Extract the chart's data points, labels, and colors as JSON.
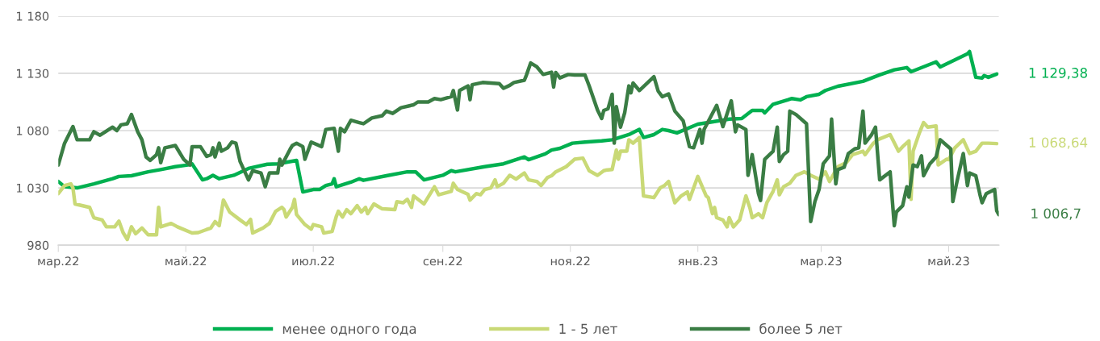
{
  "chart_data": {
    "type": "line",
    "ylim": [
      980,
      1180
    ],
    "yticks": [
      {
        "value": 980,
        "label": "980"
      },
      {
        "value": 1030,
        "label": "1 030"
      },
      {
        "value": 1080,
        "label": "1 080"
      },
      {
        "value": 1130,
        "label": "1 130"
      },
      {
        "value": 1180,
        "label": "1 180"
      }
    ],
    "xlim": [
      "2022-03-01",
      "2023-05-25"
    ],
    "xticks": [
      {
        "value": "2022-03-01",
        "label": "мар.22"
      },
      {
        "value": "2022-05-01",
        "label": "май.22"
      },
      {
        "value": "2022-07-01",
        "label": "июл.22"
      },
      {
        "value": "2022-09-01",
        "label": "сен.22"
      },
      {
        "value": "2022-11-01",
        "label": "ноя.22"
      },
      {
        "value": "2023-01-01",
        "label": "янв.23"
      },
      {
        "value": "2023-03-01",
        "label": "мар.23"
      },
      {
        "value": "2023-05-01",
        "label": "май.23"
      }
    ],
    "grid": "y",
    "legend": "bottom",
    "marker": "none",
    "line_style": "solid",
    "annotations": [
      {
        "text": "1 129,38",
        "x": "2023-05-24",
        "y": 1129.38
      },
      {
        "text": "1 068,64",
        "x": "2023-05-24",
        "y": 1068.64
      },
      {
        "text": "1 006,7",
        "x": "2023-05-25",
        "y": 1006.7
      }
    ],
    "series": [
      {
        "name": "менее одного года",
        "color": "#00b050",
        "x": [
          "2022-03-01",
          "2022-03-04",
          "2022-03-10",
          "2022-03-18",
          "2022-03-27",
          "2022-03-30",
          "2022-04-05",
          "2022-04-13",
          "2022-04-19",
          "2022-04-26",
          "2022-05-02",
          "2022-05-04",
          "2022-05-09",
          "2022-05-11",
          "2022-05-14",
          "2022-05-17",
          "2022-05-24",
          "2022-05-31",
          "2022-06-09",
          "2022-06-14",
          "2022-06-23",
          "2022-06-26",
          "2022-07-01",
          "2022-07-04",
          "2022-07-07",
          "2022-07-10",
          "2022-07-11",
          "2022-07-12",
          "2022-07-19",
          "2022-07-23",
          "2022-07-25",
          "2022-08-05",
          "2022-08-15",
          "2022-08-19",
          "2022-08-23",
          "2022-09-01",
          "2022-09-05",
          "2022-09-07",
          "2022-09-21",
          "2022-09-30",
          "2022-10-10",
          "2022-10-12",
          "2022-10-20",
          "2022-10-23",
          "2022-10-27",
          "2022-11-02",
          "2022-11-08",
          "2022-11-16",
          "2022-11-21",
          "2022-11-29",
          "2022-12-04",
          "2022-12-06",
          "2022-12-11",
          "2022-12-15",
          "2022-12-18",
          "2022-12-22",
          "2023-01-01",
          "2023-01-06",
          "2023-01-16",
          "2023-01-22",
          "2023-01-27",
          "2023-02-01",
          "2023-02-02",
          "2023-02-06",
          "2023-02-13",
          "2023-02-15",
          "2023-02-19",
          "2023-02-22",
          "2023-02-28",
          "2023-03-03",
          "2023-03-09",
          "2023-03-21",
          "2023-03-29",
          "2023-04-05",
          "2023-04-11",
          "2023-04-13",
          "2023-04-25",
          "2023-04-27",
          "2023-05-10",
          "2023-05-11",
          "2023-05-14",
          "2023-05-17",
          "2023-05-18",
          "2023-05-20",
          "2023-05-24"
        ],
        "values": [
          1035.6,
          1031,
          1030,
          1033.5,
          1038,
          1040,
          1040.6,
          1044,
          1046,
          1048.5,
          1050,
          1051,
          1037,
          1038,
          1041,
          1038,
          1041,
          1047,
          1050.6,
          1051,
          1054,
          1026.5,
          1028.6,
          1028.6,
          1032,
          1033.5,
          1038,
          1031,
          1035,
          1038,
          1036.6,
          1040.6,
          1044,
          1044,
          1037,
          1041,
          1045,
          1044,
          1048.5,
          1051,
          1057,
          1054.6,
          1059.7,
          1063,
          1064.5,
          1069,
          1070,
          1071,
          1072,
          1076.5,
          1081,
          1074,
          1076.5,
          1081,
          1080,
          1078,
          1085.6,
          1087,
          1090,
          1090.6,
          1097.6,
          1097.6,
          1095.5,
          1103,
          1106.8,
          1108,
          1106.8,
          1109.6,
          1111.7,
          1115,
          1118.7,
          1123,
          1128.6,
          1133,
          1135,
          1131.4,
          1140,
          1135.6,
          1147,
          1149,
          1126.5,
          1125.8,
          1128,
          1126.5,
          1129.38
        ]
      },
      {
        "name": "1 - 5 лет",
        "color": "#c9d976",
        "x": [
          "2022-03-01",
          "2022-03-04",
          "2022-03-07",
          "2022-03-08",
          "2022-03-09",
          "2022-03-16",
          "2022-03-18",
          "2022-03-22",
          "2022-03-24",
          "2022-03-28",
          "2022-03-30",
          "2022-04-01",
          "2022-04-03",
          "2022-04-05",
          "2022-04-07",
          "2022-04-10",
          "2022-04-13",
          "2022-04-17",
          "2022-04-18",
          "2022-04-19",
          "2022-04-24",
          "2022-04-27",
          "2022-05-04",
          "2022-05-07",
          "2022-05-13",
          "2022-05-15",
          "2022-05-17",
          "2022-05-19",
          "2022-05-22",
          "2022-05-27",
          "2022-05-30",
          "2022-06-01",
          "2022-06-02",
          "2022-06-07",
          "2022-06-10",
          "2022-06-13",
          "2022-06-16",
          "2022-06-17",
          "2022-06-18",
          "2022-06-21",
          "2022-06-22",
          "2022-06-23",
          "2022-06-27",
          "2022-06-30",
          "2022-07-01",
          "2022-07-05",
          "2022-07-06",
          "2022-07-10",
          "2022-07-12",
          "2022-07-13",
          "2022-07-15",
          "2022-07-17",
          "2022-07-19",
          "2022-07-22",
          "2022-07-24",
          "2022-07-26",
          "2022-07-27",
          "2022-07-30",
          "2022-08-03",
          "2022-08-09",
          "2022-08-10",
          "2022-08-13",
          "2022-08-15",
          "2022-08-17",
          "2022-08-18",
          "2022-08-23",
          "2022-08-26",
          "2022-08-28",
          "2022-08-30",
          "2022-09-05",
          "2022-09-06",
          "2022-09-08",
          "2022-09-13",
          "2022-09-14",
          "2022-09-17",
          "2022-09-19",
          "2022-09-21",
          "2022-09-24",
          "2022-09-26",
          "2022-09-27",
          "2022-09-30",
          "2022-10-03",
          "2022-10-06",
          "2022-10-10",
          "2022-10-12",
          "2022-10-16",
          "2022-10-18",
          "2022-10-21",
          "2022-10-23",
          "2022-10-25",
          "2022-10-30",
          "2022-11-03",
          "2022-11-07",
          "2022-11-10",
          "2022-11-14",
          "2022-11-17",
          "2022-11-18",
          "2022-11-21",
          "2022-11-23",
          "2022-11-24",
          "2022-11-25",
          "2022-11-28",
          "2022-11-29",
          "2022-12-01",
          "2022-12-04",
          "2022-12-06",
          "2022-12-11",
          "2022-12-14",
          "2022-12-16",
          "2022-12-18",
          "2022-12-21",
          "2022-12-24",
          "2022-12-27",
          "2022-12-28",
          "2023-01-01",
          "2023-01-05",
          "2023-01-06",
          "2023-01-08",
          "2023-01-09",
          "2023-01-10",
          "2023-01-13",
          "2023-01-15",
          "2023-01-16",
          "2023-01-18",
          "2023-01-21",
          "2023-01-24",
          "2023-01-26",
          "2023-01-27",
          "2023-01-30",
          "2023-02-01",
          "2023-02-03",
          "2023-02-06",
          "2023-02-08",
          "2023-02-09",
          "2023-02-11",
          "2023-02-14",
          "2023-02-17",
          "2023-02-21",
          "2023-02-24",
          "2023-02-28",
          "2023-03-03",
          "2023-03-05",
          "2023-03-09",
          "2023-03-13",
          "2023-03-16",
          "2023-03-21",
          "2023-03-22",
          "2023-03-26",
          "2023-03-28",
          "2023-04-03",
          "2023-04-04",
          "2023-04-07",
          "2023-04-09",
          "2023-04-12",
          "2023-04-13",
          "2023-04-14",
          "2023-04-17",
          "2023-04-19",
          "2023-04-21",
          "2023-04-25",
          "2023-04-26",
          "2023-04-30",
          "2023-05-01",
          "2023-05-04",
          "2023-05-08",
          "2023-05-11",
          "2023-05-14",
          "2023-05-17",
          "2023-05-20",
          "2023-05-24"
        ],
        "values": [
          1025,
          1032,
          1033.5,
          1030,
          1016,
          1013,
          1004,
          1002,
          996,
          996,
          1001,
          991,
          985,
          996,
          990,
          995,
          989,
          989,
          1013,
          996,
          999,
          996,
          990.6,
          991,
          995,
          1000.6,
          997,
          1019.4,
          1009,
          1002,
          998,
          1002.5,
          990.6,
          995,
          999,
          1009.6,
          1013,
          1011,
          1004.6,
          1013,
          1020,
          1006.7,
          998,
          994,
          998,
          996,
          990.6,
          992,
          1005,
          1009.6,
          1004.6,
          1011,
          1007.5,
          1014.5,
          1009,
          1013,
          1007.5,
          1016,
          1011.7,
          1011,
          1018,
          1017,
          1020,
          1013,
          1023,
          1016,
          1025,
          1031,
          1024,
          1027,
          1034,
          1028.6,
          1024.4,
          1019.4,
          1025,
          1024,
          1028.6,
          1030,
          1037,
          1031,
          1034,
          1041,
          1037.7,
          1043,
          1037,
          1035.6,
          1032,
          1039,
          1040.6,
          1044,
          1048.5,
          1055,
          1056,
          1045,
          1041,
          1045,
          1045.5,
          1046,
          1063,
          1055,
          1062,
          1062,
          1072,
          1069,
          1074,
          1023,
          1021.5,
          1030,
          1032,
          1035.6,
          1017,
          1023,
          1026.5,
          1020,
          1040,
          1023,
          1021.5,
          1007.5,
          1013,
          1004,
          1002,
          996,
          1004,
          996,
          1002,
          1023,
          1012,
          1004,
          1007.5,
          1004,
          1017,
          1027,
          1037,
          1024,
          1031,
          1034,
          1041,
          1044,
          1041,
          1037.6,
          1044,
          1035.6,
          1048.5,
          1052,
          1059,
          1062,
          1059,
          1069,
          1072,
          1076.5,
          1073,
          1062,
          1066,
          1071,
          1020,
          1062,
          1078,
          1087,
          1083,
          1084,
          1050,
          1055,
          1054.6,
          1065,
          1072,
          1060,
          1062,
          1069,
          1069,
          1068.64
        ]
      },
      {
        "name": "более 5 лет",
        "color": "#3a7d44",
        "x": [
          "2022-03-01",
          "2022-03-04",
          "2022-03-08",
          "2022-03-10",
          "2022-03-16",
          "2022-03-18",
          "2022-03-21",
          "2022-03-27",
          "2022-03-29",
          "2022-03-31",
          "2022-04-03",
          "2022-04-05",
          "2022-04-08",
          "2022-04-10",
          "2022-04-12",
          "2022-04-14",
          "2022-04-17",
          "2022-04-18",
          "2022-04-19",
          "2022-04-21",
          "2022-04-26",
          "2022-04-30",
          "2022-05-03",
          "2022-05-04",
          "2022-05-08",
          "2022-05-11",
          "2022-05-13",
          "2022-05-14",
          "2022-05-15",
          "2022-05-17",
          "2022-05-18",
          "2022-05-21",
          "2022-05-23",
          "2022-05-25",
          "2022-05-27",
          "2022-05-30",
          "2022-05-31",
          "2022-06-02",
          "2022-06-06",
          "2022-06-08",
          "2022-06-10",
          "2022-06-14",
          "2022-06-15",
          "2022-06-16",
          "2022-06-20",
          "2022-06-21",
          "2022-06-23",
          "2022-06-26",
          "2022-06-27",
          "2022-06-30",
          "2022-07-05",
          "2022-07-07",
          "2022-07-11",
          "2022-07-13",
          "2022-07-14",
          "2022-07-16",
          "2022-07-19",
          "2022-07-23",
          "2022-07-25",
          "2022-07-29",
          "2022-08-03",
          "2022-08-05",
          "2022-08-08",
          "2022-08-12",
          "2022-08-18",
          "2022-08-20",
          "2022-08-25",
          "2022-08-28",
          "2022-08-31",
          "2022-09-05",
          "2022-09-06",
          "2022-09-08",
          "2022-09-09",
          "2022-09-13",
          "2022-09-14",
          "2022-09-15",
          "2022-09-20",
          "2022-09-28",
          "2022-09-30",
          "2022-10-03",
          "2022-10-05",
          "2022-10-10",
          "2022-10-11",
          "2022-10-13",
          "2022-10-16",
          "2022-10-19",
          "2022-10-23",
          "2022-10-24",
          "2022-10-25",
          "2022-10-27",
          "2022-10-31",
          "2022-11-03",
          "2022-11-08",
          "2022-11-10",
          "2022-11-14",
          "2022-11-16",
          "2022-11-17",
          "2022-11-19",
          "2022-11-21",
          "2022-11-22",
          "2022-11-23",
          "2022-11-25",
          "2022-11-27",
          "2022-11-29",
          "2022-11-30",
          "2022-12-01",
          "2022-12-04",
          "2022-12-11",
          "2022-12-13",
          "2022-12-15",
          "2022-12-18",
          "2022-12-21",
          "2022-12-25",
          "2022-12-28",
          "2022-12-30",
          "2023-01-02",
          "2023-01-03",
          "2023-01-04",
          "2023-01-10",
          "2023-01-13",
          "2023-01-17",
          "2023-01-19",
          "2023-01-20",
          "2023-01-24",
          "2023-01-25",
          "2023-01-27",
          "2023-01-30",
          "2023-01-31",
          "2023-02-02",
          "2023-02-06",
          "2023-02-08",
          "2023-02-09",
          "2023-02-11",
          "2023-02-13",
          "2023-02-14",
          "2023-02-17",
          "2023-02-22",
          "2023-02-24",
          "2023-02-26",
          "2023-02-28",
          "2023-03-02",
          "2023-03-05",
          "2023-03-06",
          "2023-03-08",
          "2023-03-09",
          "2023-03-12",
          "2023-03-14",
          "2023-03-17",
          "2023-03-19",
          "2023-03-21",
          "2023-03-22",
          "2023-03-25",
          "2023-03-27",
          "2023-03-29",
          "2023-04-03",
          "2023-04-05",
          "2023-04-06",
          "2023-04-09",
          "2023-04-11",
          "2023-04-12",
          "2023-04-14",
          "2023-04-16",
          "2023-04-18",
          "2023-04-19",
          "2023-04-22",
          "2023-04-25",
          "2023-04-27",
          "2023-05-02",
          "2023-05-03",
          "2023-05-05",
          "2023-05-08",
          "2023-05-10",
          "2023-05-11",
          "2023-05-14",
          "2023-05-16",
          "2023-05-17",
          "2023-05-19",
          "2023-05-23",
          "2023-05-24",
          "2023-05-25"
        ],
        "values": [
          1050,
          1069,
          1083.5,
          1072,
          1072,
          1079,
          1076,
          1083,
          1080,
          1085,
          1086,
          1094,
          1079,
          1072,
          1057,
          1054,
          1059,
          1065,
          1052,
          1065,
          1067,
          1055,
          1050,
          1066,
          1066,
          1057.5,
          1059,
          1065,
          1057,
          1069,
          1062,
          1065,
          1070,
          1069,
          1053,
          1041,
          1037,
          1045,
          1043,
          1031,
          1043,
          1043,
          1055,
          1050,
          1064,
          1067,
          1069,
          1066,
          1055,
          1070,
          1066,
          1081,
          1082,
          1062,
          1082,
          1079,
          1089,
          1087,
          1086,
          1091,
          1093,
          1097,
          1095,
          1100,
          1102.5,
          1105,
          1105,
          1108,
          1107,
          1109.6,
          1115,
          1098,
          1115,
          1119,
          1107,
          1120,
          1122,
          1121,
          1117,
          1119.5,
          1122,
          1124,
          1128.5,
          1139,
          1135.6,
          1129,
          1131,
          1118,
          1130.7,
          1126,
          1129,
          1128.5,
          1128.5,
          1119,
          1098,
          1090.6,
          1097.6,
          1099,
          1111.7,
          1069,
          1101,
          1083,
          1095.5,
          1119,
          1113,
          1121.5,
          1115,
          1127,
          1114.5,
          1109.6,
          1112,
          1097,
          1088.5,
          1066,
          1065,
          1081,
          1069,
          1081,
          1102,
          1083.5,
          1106,
          1079,
          1085,
          1081,
          1041,
          1059,
          1025,
          1019,
          1055,
          1062,
          1083,
          1053,
          1059,
          1062,
          1097,
          1094,
          1086,
          1000.6,
          1018,
          1028.6,
          1051,
          1058,
          1090,
          1033.5,
          1046,
          1048,
          1060,
          1064,
          1065,
          1097,
          1069,
          1076,
          1083,
          1037,
          1044,
          997,
          1009,
          1014.5,
          1031,
          1022,
          1050,
          1048.5,
          1058,
          1040.6,
          1051,
          1057,
          1072,
          1064,
          1018,
          1035.6,
          1060,
          1032,
          1043,
          1040.6,
          1024,
          1017,
          1025,
          1028.6,
          1010,
          1006.7
        ]
      }
    ]
  }
}
